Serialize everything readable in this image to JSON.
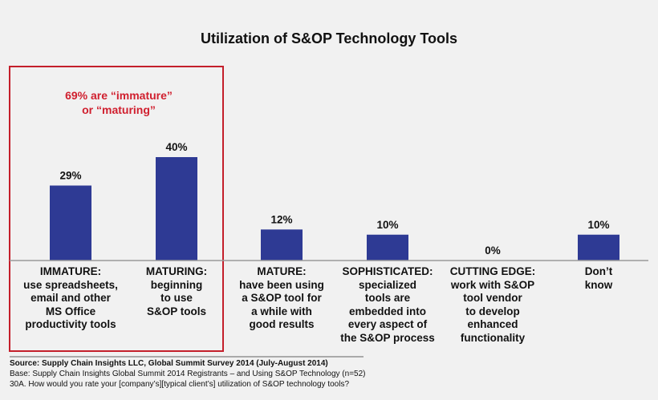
{
  "chart_data": {
    "type": "bar",
    "title": "Utilization of S&OP Technology Tools",
    "categories": [
      [
        "IMMATURE:",
        "use spreadsheets,",
        "email and other",
        "MS Office",
        "productivity tools"
      ],
      [
        "MATURING:",
        "beginning",
        "to use",
        "S&OP tools"
      ],
      [
        "MATURE:",
        "have been using",
        "a S&OP tool for",
        "a while with",
        "good results"
      ],
      [
        "SOPHISTICATED:",
        "specialized",
        "tools are",
        "embedded into",
        "every aspect of",
        "the S&OP process"
      ],
      [
        "CUTTING EDGE:",
        "work with S&OP",
        "tool vendor",
        "to develop",
        "enhanced",
        "functionality"
      ],
      [
        "Don’t",
        "know"
      ]
    ],
    "values": [
      29,
      40,
      12,
      10,
      0,
      10
    ],
    "data_labels": [
      "29%",
      "40%",
      "12%",
      "10%",
      "0%",
      "10%"
    ],
    "ylim": [
      0,
      40
    ],
    "bar_color": "#2e3a94"
  },
  "callout": {
    "lines": [
      "69% are “immature”",
      "or “maturing”"
    ],
    "color": "#d01f2e"
  },
  "footer": {
    "source": "Source: Supply Chain Insights LLC, Global Summit Survey 2014 (July-August 2014)",
    "base": "Base:  Supply Chain Insights Global Summit 2014 Registrants – and Using S&OP Technology (n=52)",
    "question": "30A. How would you rate your [company’s][typical client’s] utilization of S&OP technology tools?"
  }
}
